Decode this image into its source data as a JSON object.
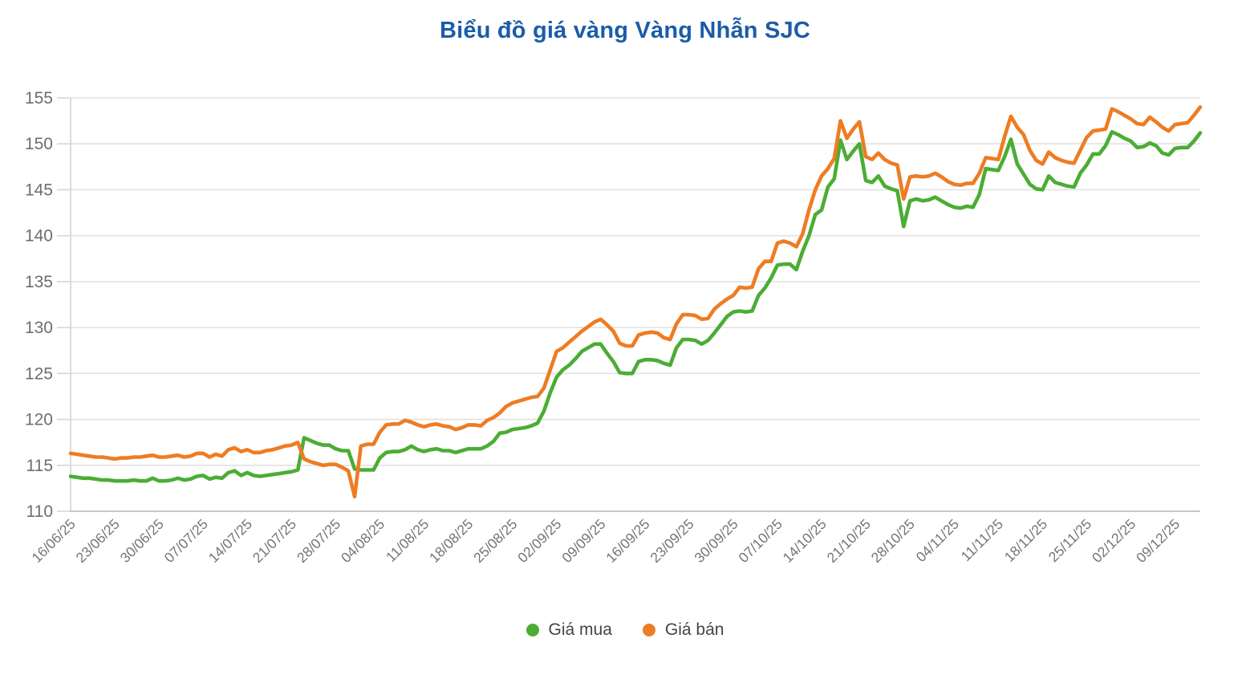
{
  "title": "Biểu đồ giá vàng Vàng Nhẫn SJC",
  "colors": {
    "title": "#1b5ca8",
    "buy": "#4bad34",
    "sell": "#ee7c23",
    "grid": "#e2e2e2",
    "axis_line": "#c9c9c9",
    "axis_text": "#757575",
    "legend_text": "#454545",
    "background": "#ffffff"
  },
  "legend": [
    {
      "label": "Giá mua",
      "color_key": "buy"
    },
    {
      "label": "Giá bán",
      "color_key": "sell"
    }
  ],
  "chart_data": {
    "type": "line",
    "title": "Biểu đồ giá vàng Vàng Nhẫn SJC",
    "xlabel": "",
    "ylabel": "",
    "ylim": [
      110,
      155
    ],
    "y_ticks": [
      110,
      115,
      120,
      125,
      130,
      135,
      140,
      145,
      150,
      155
    ],
    "grid": "horizontal",
    "legend_position": "bottom",
    "x_unit": "daily",
    "x_start_date": "16/06/25",
    "x_end_date": "12/12/25",
    "x_tick_interval_days": 7,
    "x_tick_labels": [
      "16/06/25",
      "23/06/25",
      "30/06/25",
      "07/07/25",
      "14/07/25",
      "21/07/25",
      "28/07/25",
      "04/08/25",
      "11/08/25",
      "18/08/25",
      "25/08/25",
      "02/09/25",
      "09/09/25",
      "16/09/25",
      "23/09/25",
      "30/09/25",
      "07/10/25",
      "14/10/25",
      "21/10/25",
      "28/10/25",
      "04/11/25",
      "11/11/25",
      "18/11/25",
      "25/11/25",
      "02/12/25",
      "09/12/25"
    ],
    "series": [
      {
        "name": "Giá mua",
        "color": "#4bad34",
        "values": [
          113.8,
          113.7,
          113.6,
          113.6,
          113.5,
          113.4,
          113.4,
          113.3,
          113.3,
          113.3,
          113.4,
          113.3,
          113.3,
          113.6,
          113.3,
          113.3,
          113.4,
          113.6,
          113.4,
          113.5,
          113.8,
          113.9,
          113.5,
          113.7,
          113.6,
          114.2,
          114.4,
          113.9,
          114.2,
          113.9,
          113.8,
          113.9,
          114.0,
          114.1,
          114.2,
          114.3,
          114.5,
          118.0,
          117.7,
          117.4,
          117.2,
          117.2,
          116.8,
          116.6,
          116.6,
          114.6,
          114.5,
          114.5,
          114.5,
          115.8,
          116.4,
          116.5,
          116.5,
          116.7,
          117.1,
          116.7,
          116.5,
          116.7,
          116.8,
          116.6,
          116.6,
          116.4,
          116.6,
          116.8,
          116.8,
          116.8,
          117.1,
          117.6,
          118.5,
          118.6,
          118.9,
          119.0,
          119.1,
          119.3,
          119.6,
          120.9,
          122.9,
          124.6,
          125.4,
          125.9,
          126.6,
          127.4,
          127.8,
          128.2,
          128.2,
          127.2,
          126.3,
          125.1,
          125.0,
          125.0,
          126.3,
          126.5,
          126.5,
          126.4,
          126.1,
          125.9,
          127.8,
          128.7,
          128.7,
          128.6,
          128.2,
          128.6,
          129.4,
          130.3,
          131.2,
          131.7,
          131.8,
          131.7,
          131.8,
          133.5,
          134.3,
          135.4,
          136.8,
          136.9,
          136.9,
          136.3,
          138.3,
          140.0,
          142.3,
          142.8,
          145.3,
          146.2,
          150.4,
          148.3,
          149.2,
          150.0,
          146.0,
          145.8,
          146.5,
          145.4,
          145.1,
          144.9,
          141.0,
          143.8,
          144.0,
          143.8,
          143.9,
          144.2,
          143.8,
          143.4,
          143.1,
          143.0,
          143.2,
          143.1,
          144.5,
          147.3,
          147.2,
          147.1,
          148.6,
          150.5,
          147.8,
          146.7,
          145.6,
          145.1,
          145.0,
          146.5,
          145.8,
          145.6,
          145.4,
          145.3,
          146.8,
          147.7,
          148.9,
          148.9,
          149.8,
          151.3,
          151.0,
          150.6,
          150.3,
          149.6,
          149.7,
          150.1,
          149.8,
          149.0,
          148.8,
          149.5,
          149.6,
          149.6,
          150.3,
          151.2
        ]
      },
      {
        "name": "Giá bán",
        "color": "#ee7c23",
        "values": [
          116.3,
          116.2,
          116.1,
          116.0,
          115.9,
          115.9,
          115.8,
          115.7,
          115.8,
          115.8,
          115.9,
          115.9,
          116.0,
          116.1,
          115.9,
          115.9,
          116.0,
          116.1,
          115.9,
          116.0,
          116.3,
          116.3,
          115.9,
          116.2,
          116.0,
          116.7,
          116.9,
          116.5,
          116.7,
          116.4,
          116.4,
          116.6,
          116.7,
          116.9,
          117.1,
          117.2,
          117.5,
          115.7,
          115.4,
          115.2,
          115.0,
          115.1,
          115.1,
          114.8,
          114.4,
          111.6,
          117.1,
          117.3,
          117.3,
          118.6,
          119.4,
          119.5,
          119.5,
          119.9,
          119.7,
          119.4,
          119.2,
          119.4,
          119.5,
          119.3,
          119.2,
          118.9,
          119.1,
          119.4,
          119.4,
          119.3,
          119.9,
          120.2,
          120.7,
          121.4,
          121.8,
          122.0,
          122.2,
          122.4,
          122.5,
          123.4,
          125.4,
          127.4,
          127.8,
          128.4,
          129.0,
          129.6,
          130.1,
          130.6,
          130.9,
          130.3,
          129.6,
          128.3,
          128.0,
          128.0,
          129.2,
          129.4,
          129.5,
          129.4,
          128.9,
          128.7,
          130.4,
          131.4,
          131.4,
          131.3,
          130.9,
          131.0,
          132.0,
          132.6,
          133.1,
          133.5,
          134.4,
          134.3,
          134.4,
          136.4,
          137.2,
          137.2,
          139.2,
          139.4,
          139.2,
          138.8,
          140.2,
          142.8,
          145.0,
          146.5,
          147.3,
          148.4,
          152.5,
          150.6,
          151.6,
          152.4,
          148.6,
          148.3,
          149.0,
          148.3,
          147.9,
          147.7,
          144.0,
          146.4,
          146.5,
          146.4,
          146.5,
          146.8,
          146.4,
          145.9,
          145.6,
          145.5,
          145.7,
          145.7,
          146.8,
          148.5,
          148.4,
          148.3,
          150.8,
          153.0,
          151.8,
          151.0,
          149.3,
          148.2,
          147.8,
          149.1,
          148.5,
          148.2,
          148.0,
          147.9,
          149.3,
          150.7,
          151.4,
          151.5,
          151.6,
          153.8,
          153.5,
          153.1,
          152.7,
          152.2,
          152.1,
          152.9,
          152.4,
          151.8,
          151.4,
          152.1,
          152.2,
          152.3,
          153.1,
          154.0
        ]
      }
    ]
  }
}
